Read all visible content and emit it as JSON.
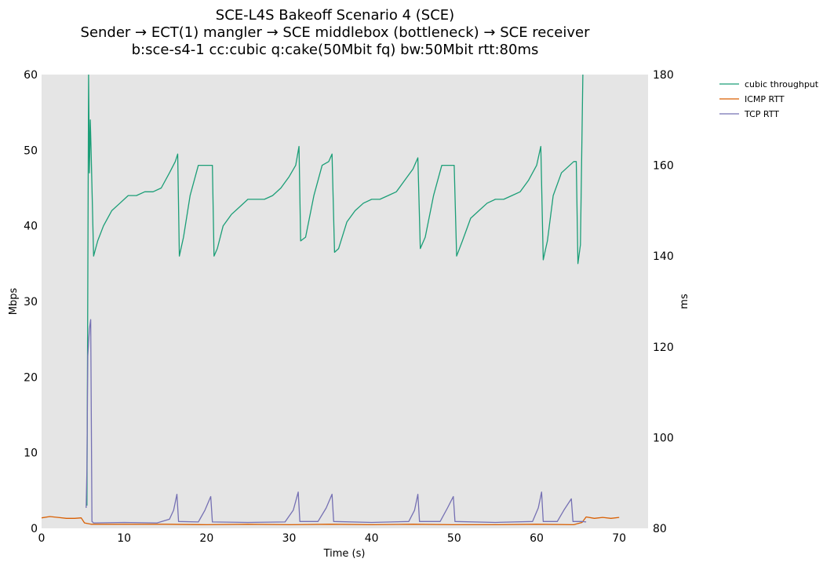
{
  "chart_data": {
    "type": "line",
    "title": [
      "SCE-L4S Bakeoff Scenario 4 (SCE)",
      "Sender → ECT(1) mangler → SCE middlebox (bottleneck) → SCE receiver",
      "b:sce-s4-1 cc:cubic q:cake(50Mbit fq) bw:50Mbit rtt:80ms"
    ],
    "xlabel": "Time (s)",
    "ylabel_left": "Mbps",
    "ylabel_right": "ms",
    "xlim": [
      0,
      73.5
    ],
    "ylim_left": [
      0,
      60
    ],
    "ylim_right": [
      80,
      180
    ],
    "xticks": [
      "0",
      "10",
      "20",
      "30",
      "40",
      "50",
      "60",
      "70"
    ],
    "yticks_left": [
      "0",
      "10",
      "20",
      "30",
      "40",
      "50",
      "60"
    ],
    "yticks_right": [
      "80",
      "100",
      "120",
      "140",
      "160",
      "180"
    ],
    "plot_background": "#e5e5e5",
    "legend_position": "top-right, outside plot",
    "series": [
      {
        "name": "cubic throughput",
        "axis": "left",
        "color": "#1b9e77",
        "points": [
          [
            5.5,
            3
          ],
          [
            5.6,
            32
          ],
          [
            5.7,
            60
          ],
          [
            5.8,
            47
          ],
          [
            5.9,
            54
          ],
          [
            6.0,
            50
          ],
          [
            6.3,
            36
          ],
          [
            6.8,
            38
          ],
          [
            7.5,
            40
          ],
          [
            8.5,
            42
          ],
          [
            9.5,
            43
          ],
          [
            10.5,
            44
          ],
          [
            11.5,
            44
          ],
          [
            12.5,
            44.5
          ],
          [
            13.5,
            44.5
          ],
          [
            14.5,
            45
          ],
          [
            15.5,
            47
          ],
          [
            16.2,
            48.5
          ],
          [
            16.5,
            49.5
          ],
          [
            16.7,
            36
          ],
          [
            17.2,
            38.5
          ],
          [
            18.0,
            44
          ],
          [
            19.0,
            48
          ],
          [
            20.0,
            48
          ],
          [
            20.7,
            48
          ],
          [
            20.9,
            36
          ],
          [
            21.3,
            37
          ],
          [
            22.0,
            40
          ],
          [
            23.0,
            41.5
          ],
          [
            24.0,
            42.5
          ],
          [
            25.0,
            43.5
          ],
          [
            26.0,
            43.5
          ],
          [
            27.0,
            43.5
          ],
          [
            28.0,
            44
          ],
          [
            29.0,
            45
          ],
          [
            30.0,
            46.5
          ],
          [
            30.8,
            48
          ],
          [
            31.2,
            50.5
          ],
          [
            31.4,
            38
          ],
          [
            32.0,
            38.5
          ],
          [
            33.0,
            44
          ],
          [
            34.0,
            48
          ],
          [
            34.8,
            48.5
          ],
          [
            35.2,
            49.5
          ],
          [
            35.5,
            36.5
          ],
          [
            36.0,
            37
          ],
          [
            37.0,
            40.5
          ],
          [
            38.0,
            42
          ],
          [
            39.0,
            43
          ],
          [
            40.0,
            43.5
          ],
          [
            41.0,
            43.5
          ],
          [
            42.0,
            44
          ],
          [
            43.0,
            44.5
          ],
          [
            44.0,
            46
          ],
          [
            45.0,
            47.5
          ],
          [
            45.6,
            49
          ],
          [
            45.9,
            37
          ],
          [
            46.5,
            38.5
          ],
          [
            47.5,
            44
          ],
          [
            48.5,
            48
          ],
          [
            49.5,
            48
          ],
          [
            50.0,
            48
          ],
          [
            50.3,
            36
          ],
          [
            51.0,
            38
          ],
          [
            52.0,
            41
          ],
          [
            53.0,
            42
          ],
          [
            54.0,
            43
          ],
          [
            55.0,
            43.5
          ],
          [
            56.0,
            43.5
          ],
          [
            57.0,
            44
          ],
          [
            58.0,
            44.5
          ],
          [
            59.0,
            46
          ],
          [
            60.0,
            48
          ],
          [
            60.5,
            50.5
          ],
          [
            60.8,
            35.5
          ],
          [
            61.3,
            38
          ],
          [
            62.0,
            44
          ],
          [
            63.0,
            47
          ],
          [
            64.5,
            48.5
          ],
          [
            64.8,
            48.5
          ],
          [
            65.0,
            35
          ],
          [
            65.3,
            37.5
          ],
          [
            65.6,
            60
          ]
        ]
      },
      {
        "name": "ICMP RTT",
        "axis": "right",
        "color": "#d95f02",
        "points": [
          [
            0,
            82.3
          ],
          [
            1,
            82.6
          ],
          [
            2,
            82.4
          ],
          [
            3,
            82.2
          ],
          [
            4,
            82.2
          ],
          [
            4.8,
            82.3
          ],
          [
            5.2,
            81.2
          ],
          [
            6,
            80.9
          ],
          [
            10,
            80.9
          ],
          [
            15,
            80.9
          ],
          [
            20,
            80.8
          ],
          [
            25,
            80.9
          ],
          [
            30,
            80.8
          ],
          [
            35,
            80.9
          ],
          [
            40,
            80.8
          ],
          [
            45,
            80.9
          ],
          [
            50,
            80.8
          ],
          [
            55,
            80.8
          ],
          [
            60,
            80.9
          ],
          [
            64.5,
            80.8
          ],
          [
            65.5,
            81.3
          ],
          [
            66.0,
            82.5
          ],
          [
            67,
            82.2
          ],
          [
            68,
            82.4
          ],
          [
            69,
            82.2
          ],
          [
            70,
            82.4
          ]
        ]
      },
      {
        "name": "TCP RTT",
        "axis": "right",
        "color": "#7570b3",
        "points": [
          [
            5.4,
            84.5
          ],
          [
            5.5,
            93
          ],
          [
            5.6,
            118
          ],
          [
            5.8,
            124
          ],
          [
            5.95,
            126
          ],
          [
            6.1,
            81.5
          ],
          [
            6.3,
            81.2
          ],
          [
            10,
            81.3
          ],
          [
            14,
            81.2
          ],
          [
            15.5,
            82
          ],
          [
            16.0,
            84
          ],
          [
            16.4,
            87.5
          ],
          [
            16.6,
            81.5
          ],
          [
            19,
            81.4
          ],
          [
            19.8,
            84
          ],
          [
            20.5,
            87
          ],
          [
            20.7,
            81.4
          ],
          [
            25,
            81.3
          ],
          [
            29.5,
            81.4
          ],
          [
            30.5,
            84
          ],
          [
            31.1,
            88
          ],
          [
            31.3,
            81.5
          ],
          [
            33.5,
            81.5
          ],
          [
            34.5,
            84.5
          ],
          [
            35.2,
            87.5
          ],
          [
            35.4,
            81.5
          ],
          [
            40,
            81.3
          ],
          [
            44.5,
            81.5
          ],
          [
            45.2,
            84
          ],
          [
            45.6,
            87.5
          ],
          [
            45.8,
            81.5
          ],
          [
            48.3,
            81.5
          ],
          [
            49.2,
            84.5
          ],
          [
            49.9,
            87
          ],
          [
            50.1,
            81.5
          ],
          [
            55,
            81.3
          ],
          [
            59.5,
            81.5
          ],
          [
            60.2,
            84.5
          ],
          [
            60.6,
            88
          ],
          [
            60.8,
            81.5
          ],
          [
            62.5,
            81.5
          ],
          [
            63.3,
            84
          ],
          [
            64.2,
            86.5
          ],
          [
            64.4,
            81.5
          ],
          [
            65.5,
            81.5
          ],
          [
            66.0,
            81.4
          ]
        ]
      }
    ]
  }
}
